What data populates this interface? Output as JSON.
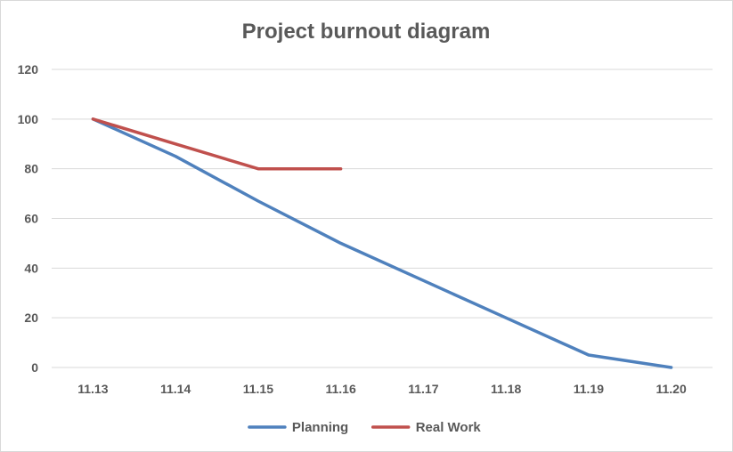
{
  "chart_data": {
    "type": "line",
    "title": "Project burnout diagram",
    "xlabel": "",
    "ylabel": "",
    "categories": [
      "11.13",
      "11.14",
      "11.15",
      "11.16",
      "11.17",
      "11.18",
      "11.19",
      "11.20"
    ],
    "ylim": [
      0,
      120
    ],
    "yticks": [
      "0",
      "20",
      "40",
      "60",
      "80",
      "100",
      "120"
    ],
    "grid": true,
    "legend": "bottom",
    "series": [
      {
        "name": "Planning",
        "color": "#4f81bd",
        "values": [
          100,
          85,
          67,
          50,
          35,
          20,
          5,
          0
        ]
      },
      {
        "name": "Real Work",
        "color": "#c0504d",
        "values": [
          100,
          90,
          80,
          80,
          null,
          null,
          null,
          null
        ]
      }
    ]
  }
}
